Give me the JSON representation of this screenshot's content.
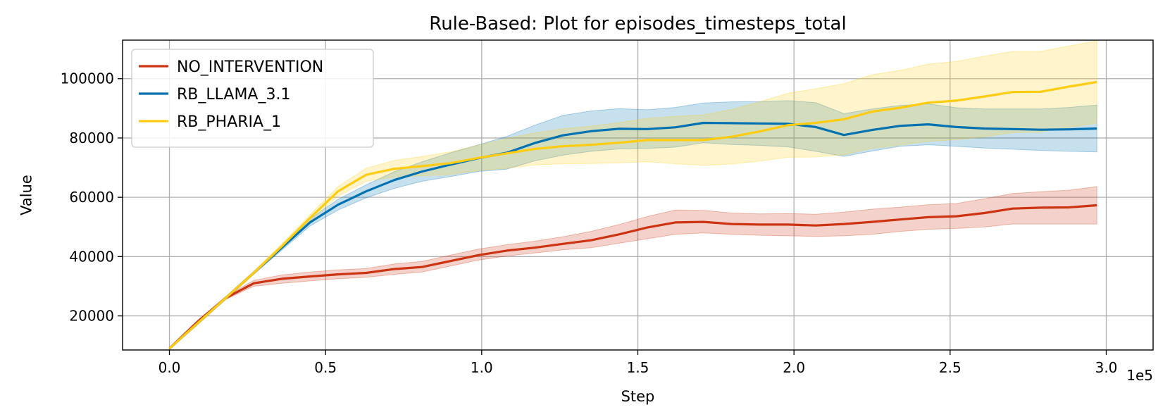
{
  "chart_data": {
    "type": "line",
    "title": "Rule-Based: Plot for episodes_timesteps_total",
    "xlabel": "Step",
    "ylabel": "Value",
    "x_offset_label": "1e5",
    "xlim": [
      -0.15,
      3.15
    ],
    "ylim": [
      8500,
      113000
    ],
    "x_ticks": [
      0.0,
      0.5,
      1.0,
      1.5,
      2.0,
      2.5,
      3.0
    ],
    "x_tick_labels": [
      "0.0",
      "0.5",
      "1.0",
      "1.5",
      "2.0",
      "2.5",
      "3.0"
    ],
    "y_ticks": [
      20000,
      40000,
      60000,
      80000,
      100000
    ],
    "y_tick_labels": [
      "20000",
      "40000",
      "60000",
      "80000",
      "100000"
    ],
    "grid": true,
    "legend_position": "top-left",
    "x": [
      0.0,
      0.09,
      0.18,
      0.27,
      0.36,
      0.45,
      0.54,
      0.63,
      0.72,
      0.81,
      0.9,
      0.99,
      1.08,
      1.17,
      1.26,
      1.35,
      1.44,
      1.53,
      1.62,
      1.71,
      1.8,
      1.89,
      1.98,
      2.07,
      2.16,
      2.25,
      2.34,
      2.43,
      2.52,
      2.61,
      2.7,
      2.79,
      2.88,
      2.97
    ],
    "series": [
      {
        "name": "NO_INTERVENTION",
        "color": "#cc3311",
        "values": [
          9000,
          18000,
          26000,
          31000,
          32500,
          33300,
          34000,
          34500,
          35800,
          36500,
          38500,
          40500,
          42000,
          43000,
          44300,
          45500,
          47500,
          49800,
          51500,
          51700,
          51000,
          50800,
          50800,
          50500,
          51000,
          51700,
          52500,
          53300,
          53600,
          54700,
          56200,
          56500,
          56600,
          57300
        ],
        "lower": [
          8600,
          17500,
          25500,
          30000,
          31000,
          31800,
          32500,
          33000,
          34000,
          34800,
          36800,
          38800,
          40200,
          41200,
          42300,
          43000,
          44500,
          46000,
          47500,
          48000,
          47500,
          47200,
          47000,
          46800,
          47000,
          47500,
          48500,
          49200,
          49500,
          50000,
          51000,
          51000,
          51000,
          51000
        ],
        "upper": [
          9400,
          18500,
          26500,
          32000,
          33800,
          34800,
          35500,
          36000,
          37500,
          38400,
          40500,
          42500,
          44000,
          45200,
          46700,
          48500,
          50800,
          53500,
          55700,
          55600,
          54700,
          54400,
          54500,
          54300,
          55000,
          56000,
          56700,
          57500,
          57900,
          59500,
          61300,
          61900,
          62400,
          63600
        ]
      },
      {
        "name": "RB_LLAMA_3.1",
        "color": "#0072b2",
        "values": [
          9000,
          17500,
          26000,
          34500,
          43000,
          51500,
          57500,
          62000,
          65800,
          68700,
          71000,
          73200,
          75000,
          78300,
          80900,
          82300,
          83100,
          83000,
          83600,
          85100,
          85000,
          84900,
          84800,
          83700,
          81000,
          82700,
          84100,
          84600,
          83700,
          83200,
          83000,
          82800,
          82900,
          83200
        ],
        "lower": [
          8600,
          17000,
          25500,
          34000,
          42200,
          50300,
          55700,
          59800,
          63000,
          65400,
          67000,
          68700,
          69500,
          72300,
          74200,
          75500,
          76300,
          76500,
          76900,
          78400,
          77800,
          77500,
          77000,
          75500,
          73800,
          75600,
          77200,
          77700,
          77200,
          76600,
          76200,
          75800,
          75500,
          75300
        ],
        "upper": [
          9400,
          18000,
          26500,
          35000,
          43800,
          52700,
          59300,
          64200,
          68600,
          72000,
          75000,
          77700,
          80500,
          84300,
          87600,
          89100,
          89900,
          89500,
          90300,
          91800,
          92200,
          92300,
          92600,
          91900,
          88200,
          89800,
          91000,
          91500,
          90200,
          89800,
          89800,
          89800,
          90300,
          91100
        ]
      },
      {
        "name": "RB_PHARIA_1",
        "color": "#ffcc11",
        "values": [
          9000,
          17500,
          26000,
          34500,
          43500,
          53000,
          62000,
          67600,
          69600,
          70500,
          71500,
          73300,
          74800,
          76300,
          77200,
          77700,
          78400,
          79300,
          79300,
          79300,
          80400,
          82200,
          84300,
          85100,
          86300,
          88900,
          90200,
          91900,
          92600,
          94000,
          95500,
          95600,
          97300,
          98900
        ],
        "lower": [
          8600,
          17000,
          25500,
          34000,
          42700,
          51900,
          60400,
          65400,
          66800,
          67200,
          67700,
          69000,
          69800,
          70900,
          71300,
          71400,
          71600,
          72000,
          71300,
          70800,
          71200,
          72200,
          73500,
          73600,
          74300,
          76500,
          77600,
          78900,
          79400,
          80400,
          81800,
          82000,
          83600,
          85000
        ],
        "upper": [
          9400,
          18000,
          26500,
          35000,
          44300,
          54100,
          63600,
          69800,
          72400,
          73800,
          75300,
          77600,
          79800,
          81700,
          83100,
          84000,
          85200,
          86600,
          87300,
          87800,
          89600,
          92200,
          95100,
          96600,
          98300,
          101300,
          102800,
          104900,
          105800,
          107600,
          109200,
          109200,
          111000,
          112800
        ]
      }
    ]
  }
}
